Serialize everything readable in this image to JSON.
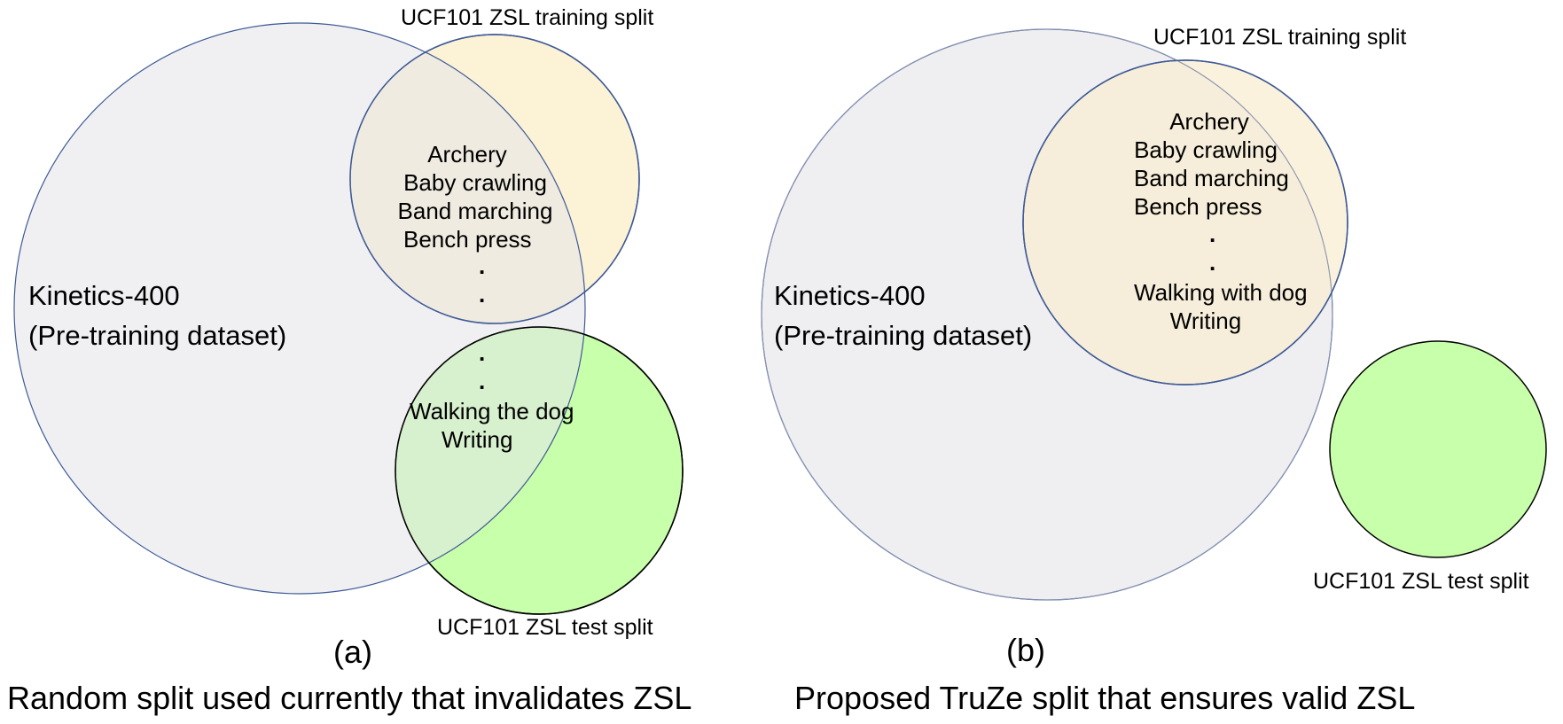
{
  "colors": {
    "kinetics_fill": "#efeff2",
    "train_fill": "#fcf3d6",
    "test_fill": "#c8ffaa",
    "outline": "#3f5a96"
  },
  "panel_a": {
    "kinetics_label_line1": "Kinetics-400",
    "kinetics_label_line2": "(Pre-training dataset)",
    "train_label": "UCF101 ZSL training split",
    "test_label": "UCF101 ZSL test split",
    "train_classes": [
      "Archery",
      "Baby crawling",
      "Band marching",
      "Bench press"
    ],
    "test_classes": [
      "Walking the dog",
      "Writing"
    ],
    "dot": ".",
    "panel_tag": "(a)",
    "caption": "Random split used currently that invalidates ZSL"
  },
  "panel_b": {
    "kinetics_label_line1": "Kinetics-400",
    "kinetics_label_line2": "(Pre-training dataset)",
    "train_label": "UCF101 ZSL training split",
    "test_label": "UCF101 ZSL test split",
    "train_classes": [
      "Archery",
      "Baby crawling",
      "Band marching",
      "Bench press",
      "Walking with dog",
      "Writing"
    ],
    "dot": ".",
    "panel_tag": "(b)",
    "caption": "Proposed TruZe split that ensures valid ZSL"
  }
}
